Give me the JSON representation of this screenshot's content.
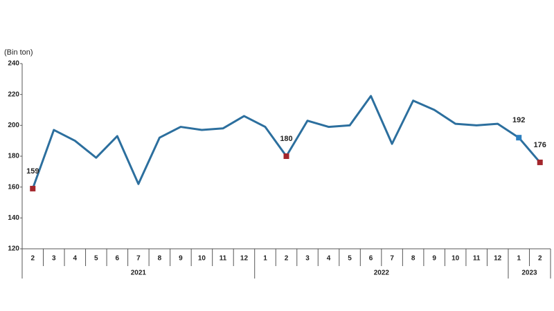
{
  "chart_data": {
    "type": "line",
    "y_label": "(Bin ton)",
    "groups": [
      {
        "name": "2021",
        "categories": [
          "2",
          "3",
          "4",
          "5",
          "6",
          "7",
          "8",
          "9",
          "10",
          "11",
          "12"
        ]
      },
      {
        "name": "2022",
        "categories": [
          "1",
          "2",
          "3",
          "4",
          "5",
          "6",
          "7",
          "8",
          "9",
          "10",
          "11",
          "12"
        ]
      },
      {
        "name": "2023",
        "categories": [
          "1",
          "2"
        ]
      }
    ],
    "series": [
      {
        "color": "#2c6f9e",
        "values": [
          159,
          197,
          190,
          179,
          193,
          162,
          192,
          199,
          197,
          198,
          206,
          199,
          180,
          203,
          199,
          200,
          219,
          188,
          216,
          210,
          201,
          200,
          201,
          192,
          176
        ],
        "point_colors": [
          "#a3262c",
          null,
          null,
          null,
          null,
          null,
          null,
          null,
          null,
          null,
          null,
          null,
          "#a3262c",
          null,
          null,
          null,
          null,
          null,
          null,
          null,
          null,
          null,
          null,
          "#2c7fbf",
          "#a3262c"
        ]
      }
    ],
    "ylim": [
      120,
      240
    ],
    "yticks": [
      120,
      140,
      160,
      180,
      200,
      220,
      240
    ]
  }
}
